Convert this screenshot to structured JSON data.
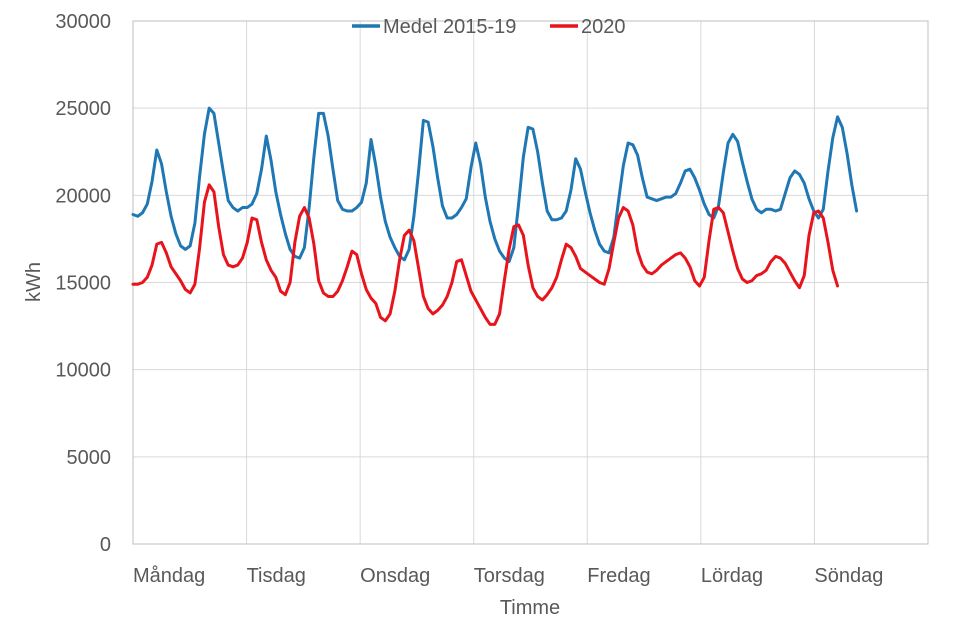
{
  "chart_data": {
    "type": "line",
    "xlabel": "Timme",
    "ylabel": "kWh",
    "ylim": [
      0,
      30000
    ],
    "yticks": [
      "0",
      "5000",
      "10000",
      "15000",
      "20000",
      "25000",
      "30000"
    ],
    "categories": [
      "Måndag",
      "Tisdag",
      "Onsdag",
      "Torsdag",
      "Fredag",
      "Lördag",
      "Söndag"
    ],
    "hours_per_day": 24,
    "grid": "vertical and horizontal",
    "legend_position": "top",
    "series": [
      {
        "name": "Medel 2015-19",
        "color": "#1f77b4",
        "daily_values": [
          [
            18900,
            18800,
            19000,
            19500,
            20800,
            22600,
            21800,
            20200,
            18800,
            17800,
            17100,
            16900,
            17100,
            18400,
            21100,
            23500,
            25000,
            24700,
            23000,
            21300,
            19700,
            19300,
            19100,
            19300
          ],
          [
            19300,
            19500,
            20100,
            21500,
            23400,
            22000,
            20200,
            18900,
            17800,
            16900,
            16500,
            16400,
            17000,
            19300,
            22200,
            24700,
            24700,
            23400,
            21500,
            19700,
            19200,
            19100,
            19100,
            19300
          ],
          [
            19600,
            20700,
            23200,
            21700,
            19900,
            18500,
            17600,
            17000,
            16500,
            16300,
            16900,
            18800,
            21400,
            24300,
            24200,
            22800,
            21000,
            19400,
            18700,
            18700,
            18900,
            19300,
            19800,
            21600
          ],
          [
            23000,
            21800,
            19900,
            18500,
            17500,
            16800,
            16400,
            16200,
            17000,
            19500,
            22200,
            23900,
            23800,
            22500,
            20700,
            19100,
            18600,
            18600,
            18700,
            19100,
            20300,
            22100,
            21500,
            20200
          ],
          [
            19000,
            18000,
            17200,
            16800,
            16700,
            17600,
            19700,
            21700,
            23000,
            22900,
            22300,
            21000,
            19900,
            19800,
            19700,
            19800,
            19900,
            19900,
            20100,
            20700,
            21400,
            21500,
            21000,
            20300
          ],
          [
            19500,
            18900,
            18700,
            19400,
            21300,
            23000,
            23500,
            23100,
            21900,
            20800,
            19800,
            19200,
            19000,
            19200,
            19200,
            19100,
            19200,
            20100,
            21000,
            21400,
            21200,
            20700,
            19800,
            19100
          ],
          [
            18700,
            19200,
            21400,
            23300,
            24500,
            23900,
            22400,
            20600,
            19100
          ]
        ]
      },
      {
        "name": "2020",
        "color": "#e8131b",
        "daily_values": [
          [
            14900,
            14900,
            15000,
            15300,
            16000,
            17200,
            17300,
            16700,
            15900,
            15500,
            15100,
            14600,
            14400,
            14900,
            17000,
            19600,
            20600,
            20200,
            18200,
            16600,
            16000,
            15900,
            16000,
            16400
          ],
          [
            17300,
            18700,
            18600,
            17300,
            16300,
            15700,
            15300,
            14500,
            14300,
            15000,
            17300,
            18800,
            19300,
            18700,
            17200,
            15100,
            14400,
            14200,
            14200,
            14500,
            15100,
            15900,
            16800,
            16600
          ],
          [
            15500,
            14600,
            14100,
            13800,
            13000,
            12800,
            13200,
            14500,
            16300,
            17700,
            18000,
            17400,
            15800,
            14200,
            13500,
            13200,
            13400,
            13700,
            14200,
            15000,
            16200,
            16300,
            15400,
            14500
          ],
          [
            14000,
            13500,
            13000,
            12600,
            12600,
            13200,
            15100,
            16900,
            18200,
            18300,
            17700,
            16000,
            14700,
            14200,
            14000,
            14300,
            14700,
            15300,
            16300,
            17200,
            17000,
            16500,
            15800,
            15600
          ],
          [
            15400,
            15200,
            15000,
            14900,
            15800,
            17300,
            18700,
            19300,
            19100,
            18300,
            16800,
            16000,
            15600,
            15500,
            15700,
            16000,
            16200,
            16400,
            16600,
            16700,
            16400,
            15900,
            15100,
            14800
          ],
          [
            15300,
            17400,
            19200,
            19300,
            19000,
            17900,
            16800,
            15800,
            15200,
            15000,
            15100,
            15400,
            15500,
            15700,
            16200,
            16500,
            16400,
            16100,
            15600,
            15100,
            14700,
            15400,
            17700,
            19000
          ],
          [
            19100,
            18700,
            17300,
            15700,
            14800
          ]
        ]
      }
    ]
  }
}
